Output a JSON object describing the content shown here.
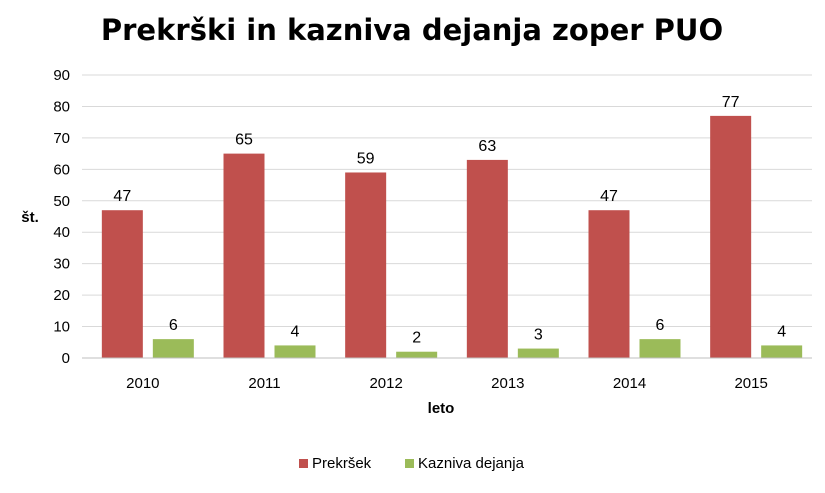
{
  "colors": {
    "prekrsek": "#c0504d",
    "kazniva": "#9bbb59",
    "grid": "#d9d9d9",
    "axis": "#bfbfbf"
  },
  "chart_data": {
    "type": "bar",
    "title": "Prekrški in kazniva dejanja zoper PUO",
    "xlabel": "leto",
    "ylabel": "št.",
    "categories": [
      "2010",
      "2011",
      "2012",
      "2013",
      "2014",
      "2015"
    ],
    "ylim": [
      0,
      90
    ],
    "yticks": [
      0,
      10,
      20,
      30,
      40,
      50,
      60,
      70,
      80,
      90
    ],
    "grid": true,
    "legend_position": "bottom",
    "series": [
      {
        "name": "Prekršek",
        "values": [
          47,
          65,
          59,
          63,
          47,
          77
        ]
      },
      {
        "name": "Kazniva dejanja",
        "values": [
          6,
          4,
          2,
          3,
          6,
          4
        ]
      }
    ]
  }
}
